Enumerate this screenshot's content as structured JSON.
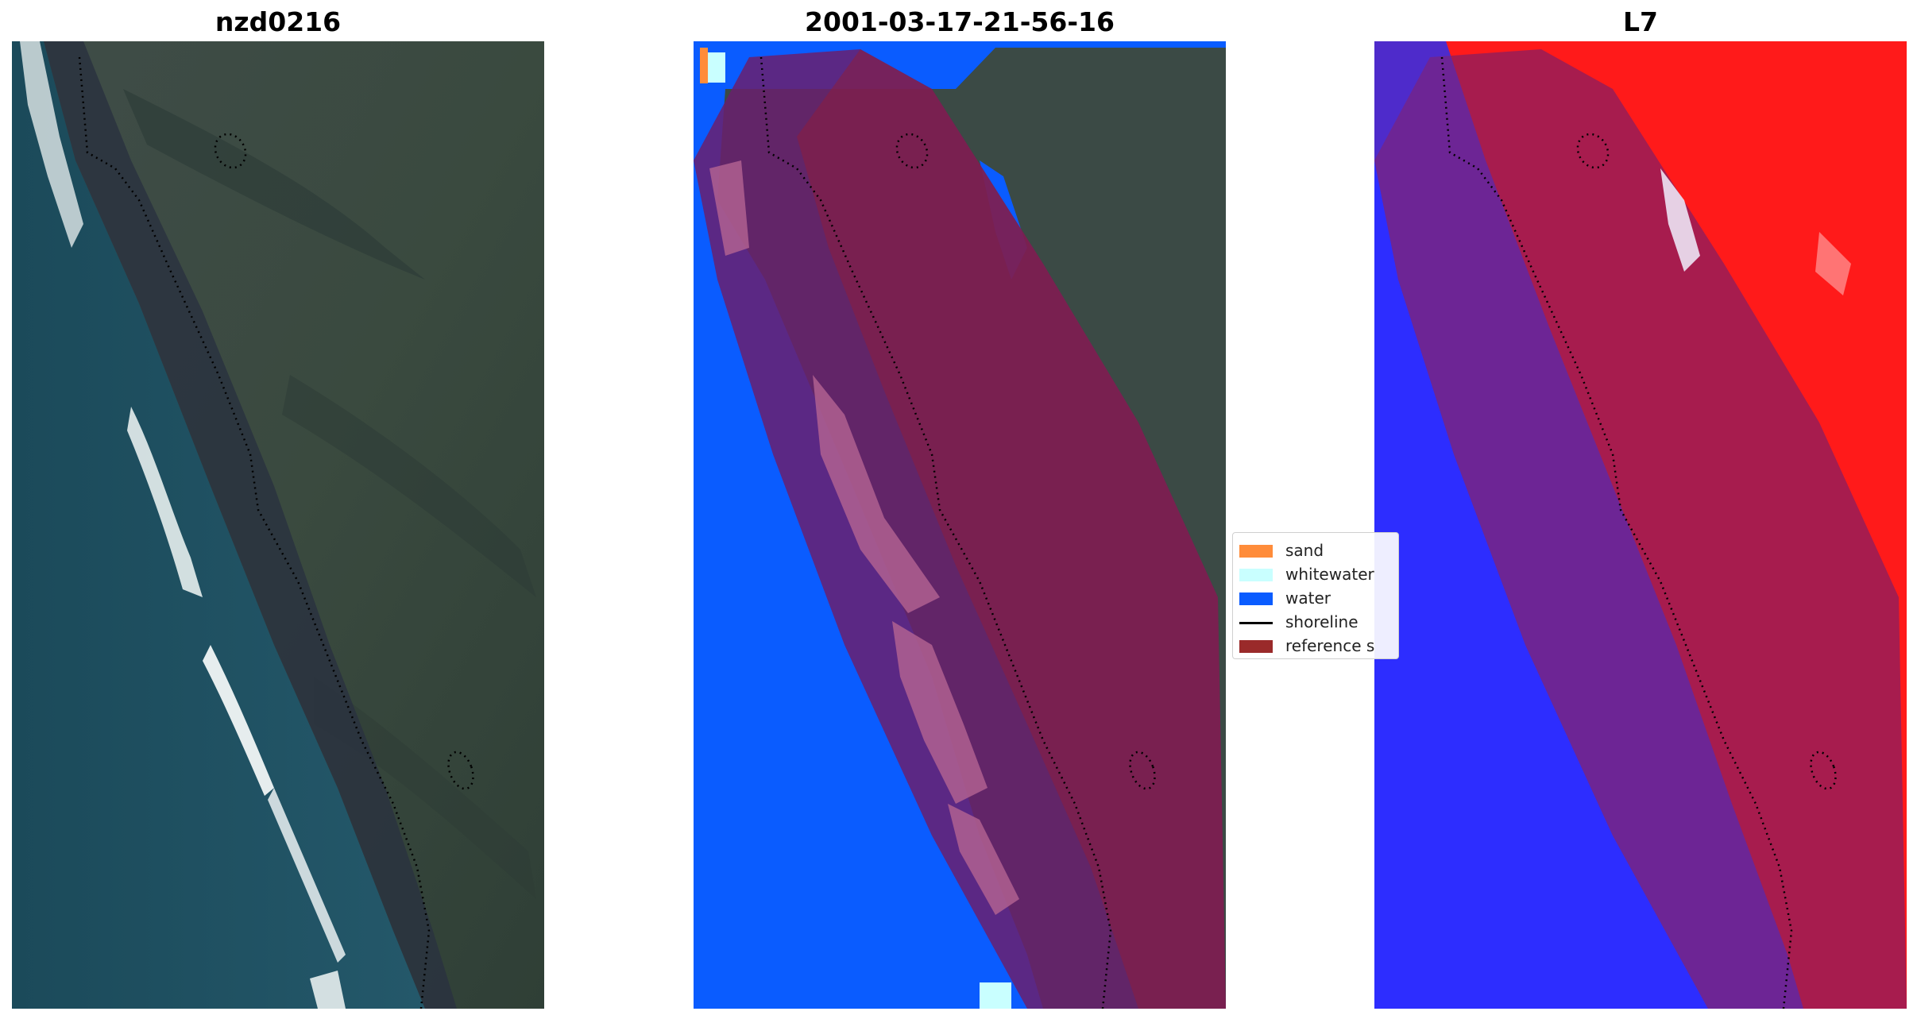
{
  "titles": {
    "left": "nzd0216",
    "center": "2001-03-17-21-56-16",
    "right": "L7"
  },
  "legend": {
    "items": [
      {
        "label": "sand",
        "color": "#ff8c3a",
        "kind": "patch"
      },
      {
        "label": "whitewater",
        "color": "#c9ffff",
        "kind": "patch"
      },
      {
        "label": "water",
        "color": "#0a5cff",
        "kind": "patch"
      },
      {
        "label": "shoreline",
        "color": "#000000",
        "kind": "line"
      },
      {
        "label": "reference s",
        "color": "#9a2a2a",
        "kind": "patch"
      }
    ]
  },
  "colors": {
    "ocean": "#1f4e5e",
    "land": "#3c4a45",
    "water_class": "#0a5cff",
    "sand_class": "#ff8c3a",
    "whitewater_class": "#c9ffff",
    "reference_buffer": "#9a2a2a",
    "index_positive": "#ff1a1a",
    "index_negative": "#2d2dff"
  }
}
